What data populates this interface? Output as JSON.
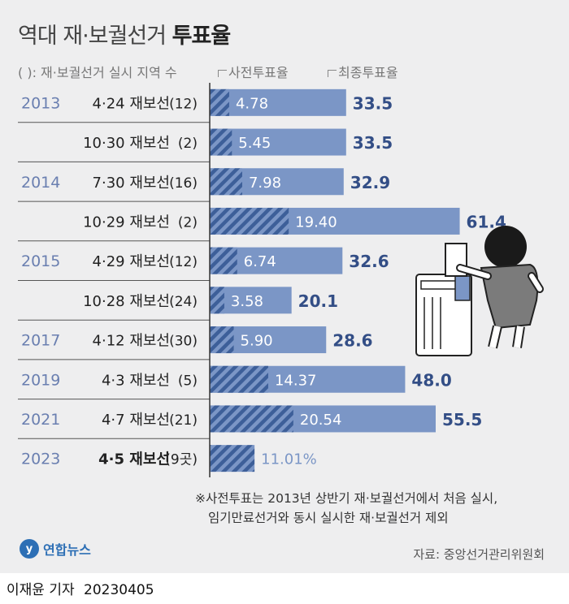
{
  "header": {
    "title_light": "역대 재·보궐선거",
    "title_bold": "투표율",
    "note": "( ): 재·보궐선거 실시 지역 수",
    "legend_early": "사전투표율",
    "legend_final": "최종투표율"
  },
  "colors": {
    "final_bar": "#7b96c6",
    "stripe": "#3d5f99",
    "year_text": "#6a7fb0",
    "value_text": "#334e86"
  },
  "footer": {
    "note_line1": "※사전투표는 2013년 상반기 재·보궐선거에서 처음 실시,",
    "note_line2": "임기만료선거와 동시 실시한 재·보궐선거 제외",
    "source": "자료: 중앙선거관리위원회",
    "logo_text": "연합뉴스",
    "reporter": "이재윤 기자",
    "date": "20230405"
  },
  "chart_data": {
    "type": "bar",
    "orientation": "horizontal",
    "years": [
      "2013",
      "",
      "2014",
      "",
      "2015",
      "",
      "2017",
      "2019",
      "2021",
      "2023"
    ],
    "categories": [
      "4·24 재보선",
      "10·30 재보선",
      "7·30 재보선",
      "10·29 재보선",
      "4·29 재보선",
      "10·28 재보선",
      "4·12 재보선",
      "4·3 재보선",
      "4·7 재보선",
      "4·5 재보선"
    ],
    "regions": [
      "(12)",
      "(2)",
      "(16)",
      "(2)",
      "(12)",
      "(24)",
      "(30)",
      "(5)",
      "(21)",
      "(9곳)"
    ],
    "series": [
      {
        "name": "사전투표율",
        "values": [
          4.78,
          5.45,
          7.98,
          19.4,
          6.74,
          3.58,
          5.9,
          14.37,
          20.54,
          11.01
        ],
        "labels": [
          "4.78",
          "5.45",
          "7.98",
          "19.40",
          "6.74",
          "3.58",
          "5.90",
          "14.37",
          "20.54",
          "11.01%"
        ]
      },
      {
        "name": "최종투표율",
        "values": [
          33.5,
          33.5,
          32.9,
          61.4,
          32.6,
          20.1,
          28.6,
          48.0,
          55.5,
          null
        ],
        "labels": [
          "33.5",
          "33.5",
          "32.9",
          "61.4",
          "32.6",
          "20.1",
          "28.6",
          "48.0",
          "55.5",
          ""
        ]
      }
    ],
    "xlim": [
      0,
      70
    ]
  }
}
